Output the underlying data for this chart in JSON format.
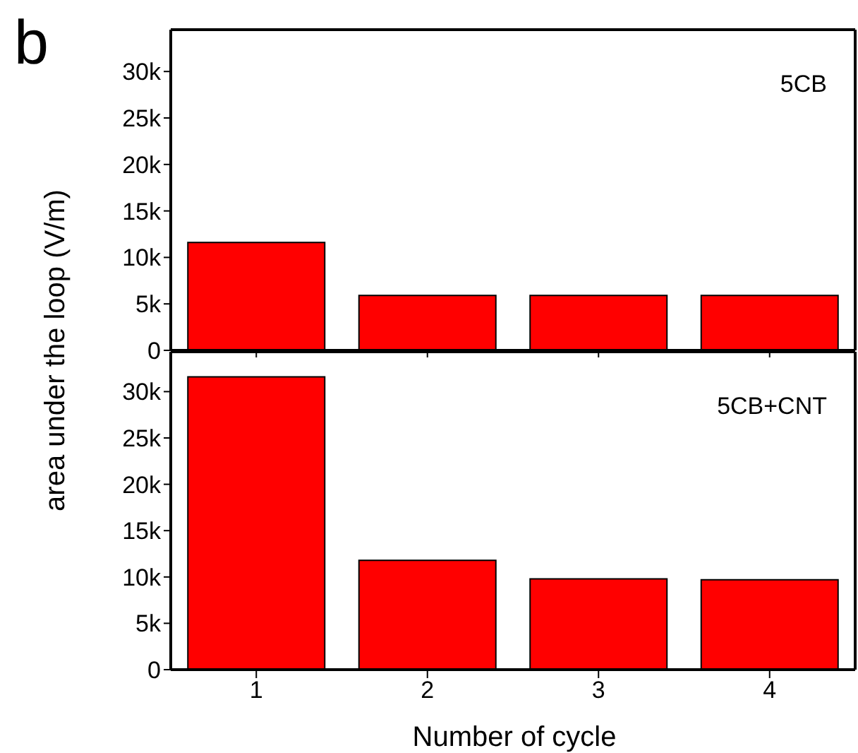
{
  "chart_data": [
    {
      "type": "bar",
      "ylabel": "area under the loop (V/m)",
      "annotations": [
        "b"
      ],
      "categories": [
        "1",
        "2",
        "3",
        "4"
      ],
      "tick_labels": "y",
      "series": [
        {
          "name": "5CB",
          "color": "#ff0000",
          "values": [
            11600,
            5900,
            5900,
            5900
          ]
        }
      ],
      "ylim": [
        0,
        34500
      ],
      "yticks": [
        0,
        {
          "value": 5000,
          "label": "5k"
        },
        {
          "value": 10000,
          "label": "10k"
        },
        {
          "value": 15000,
          "label": "15k"
        },
        {
          "value": 20000,
          "label": "20k"
        },
        {
          "value": 25000,
          "label": "25k"
        },
        {
          "value": 30000,
          "label": "30k"
        }
      ]
    },
    {
      "type": "bar",
      "xlabel": "Number of cycle",
      "categories": [
        "1",
        "2",
        "3",
        "4"
      ],
      "series": [
        {
          "name": "5CB+CNT",
          "color": "#ff0000",
          "values": [
            31600,
            11800,
            9800,
            9700
          ]
        }
      ],
      "ylim": [
        0,
        34300
      ],
      "yticks": [
        0,
        {
          "value": 5000,
          "label": "5k"
        },
        {
          "value": 10000,
          "label": "10k"
        },
        {
          "value": 15000,
          "label": "15k"
        },
        {
          "value": 20000,
          "label": "20k"
        },
        {
          "value": 25000,
          "label": "25k"
        },
        {
          "value": 30000,
          "label": "30k"
        }
      ]
    }
  ]
}
